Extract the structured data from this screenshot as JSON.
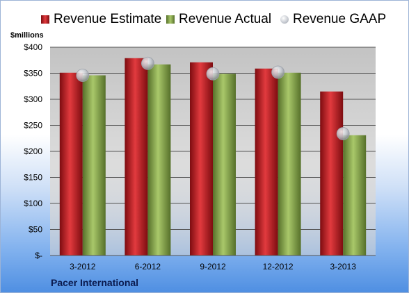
{
  "chart_data": {
    "type": "bar",
    "categories": [
      "3-2012",
      "6-2012",
      "9-2012",
      "12-2012",
      "3-2013"
    ],
    "series": [
      {
        "name": "Revenue Estimate",
        "values": [
          351,
          379,
          371,
          359,
          315
        ],
        "color": "#c0161b"
      },
      {
        "name": "Revenue Actual",
        "values": [
          346,
          367,
          349,
          351,
          231
        ],
        "color": "#83a345"
      },
      {
        "name": "Revenue GAAP",
        "values": [
          346,
          369,
          349,
          352,
          234
        ],
        "color": "#bfc4cc",
        "marker": "circle"
      }
    ],
    "ylabel": "$millions",
    "ylim": [
      0,
      400
    ],
    "yticks": [
      0,
      50,
      100,
      150,
      200,
      250,
      300,
      350,
      400
    ],
    "ytick_labels": [
      "$-",
      "$50",
      "$100",
      "$150",
      "$200",
      "$250",
      "$300",
      "$350",
      "$400"
    ],
    "grid": true,
    "legend": "top",
    "caption": "Pacer International"
  }
}
